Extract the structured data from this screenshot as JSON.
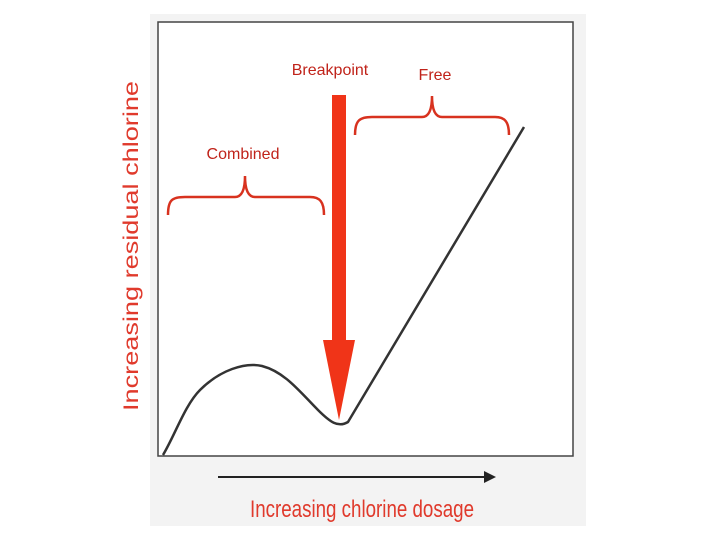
{
  "annotations": {
    "breakpoint": "Breakpoint",
    "free": "Free",
    "combined": "Combined"
  },
  "axes": {
    "x_label": "Increasing chlorine dosage",
    "y_label": "Increasing residual chlorine"
  }
}
